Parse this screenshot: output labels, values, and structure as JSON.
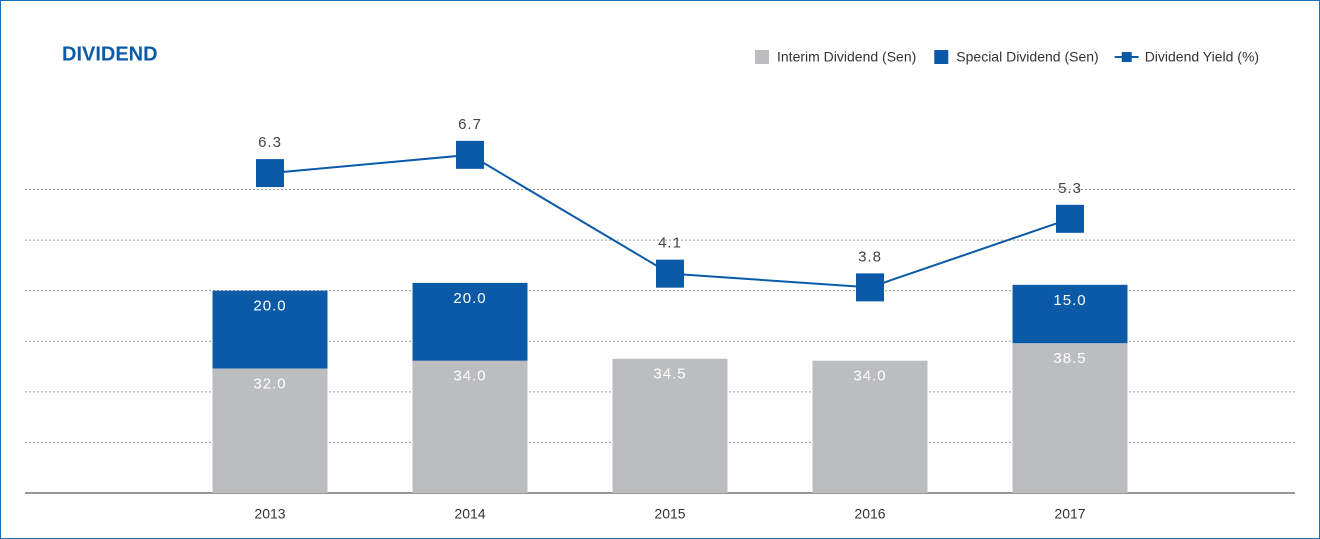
{
  "chart_data": {
    "type": "bar",
    "title": "DIVIDEND",
    "categories": [
      "2013",
      "2014",
      "2015",
      "2016",
      "2017"
    ],
    "series": [
      {
        "name": "Interim Dividend (Sen)",
        "color": "#bcbdbf",
        "values": [
          32,
          34,
          34.5,
          34,
          38.5
        ],
        "value_labels": [
          "32.0",
          "34.0",
          "34.5",
          "34.0",
          "38.5"
        ]
      },
      {
        "name": "Special Dividend (Sen)",
        "color": "#0b5aa8",
        "values": [
          20,
          20,
          null,
          null,
          15
        ],
        "value_labels": [
          "20.0",
          "20.0",
          null,
          null,
          "15.0"
        ]
      },
      {
        "name": "Dividend Yield (%)",
        "color": "#0b5aa8",
        "type": "line",
        "axis": "y2",
        "values": [
          6.3,
          6.7,
          4.1,
          3.8,
          5.3
        ]
      }
    ],
    "ylim": [
      0,
      101
    ],
    "yticks": [
      13,
      26,
      39,
      52,
      65,
      78
    ],
    "y2lim": [
      -0.7,
      7.9
    ],
    "grid": true,
    "legend": "top-right"
  }
}
